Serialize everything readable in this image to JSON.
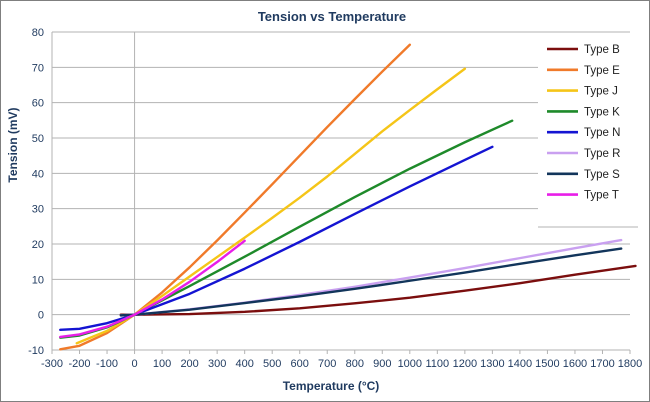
{
  "chart_data": {
    "type": "line",
    "title": "Tension vs Temperature",
    "xlabel": "Temperature (°C)",
    "ylabel": "Tension (mV)",
    "xlim": [
      -300,
      1800
    ],
    "ylim": [
      -10,
      80
    ],
    "xticks": [
      -300,
      -200,
      -100,
      0,
      100,
      200,
      300,
      400,
      500,
      600,
      700,
      800,
      900,
      1000,
      1100,
      1200,
      1300,
      1400,
      1500,
      1600,
      1700,
      1800
    ],
    "yticks": [
      -10,
      0,
      10,
      20,
      30,
      40,
      50,
      60,
      70,
      80
    ],
    "grid": "horizontal",
    "legend": "right",
    "series": [
      {
        "name": "Type B",
        "color": "#7b0e0e",
        "x": [
          -50,
          0,
          200,
          400,
          600,
          800,
          1000,
          1200,
          1400,
          1600,
          1820
        ],
        "y": [
          0.0,
          0.0,
          0.18,
          0.8,
          1.8,
          3.2,
          4.8,
          6.8,
          8.9,
          11.3,
          13.8
        ]
      },
      {
        "name": "Type E",
        "color": "#f07a2a",
        "x": [
          -270,
          -200,
          -100,
          0,
          100,
          200,
          300,
          400,
          500,
          600,
          700,
          800,
          900,
          1000
        ],
        "y": [
          -9.8,
          -8.8,
          -5.2,
          0,
          6.3,
          13.4,
          21.0,
          28.9,
          36.9,
          45.0,
          53.1,
          61.0,
          68.8,
          76.4
        ]
      },
      {
        "name": "Type J",
        "color": "#f5c518",
        "x": [
          -210,
          -100,
          0,
          100,
          200,
          300,
          400,
          500,
          600,
          700,
          800,
          900,
          1000,
          1100,
          1200
        ],
        "y": [
          -8.1,
          -4.6,
          0,
          5.3,
          10.8,
          16.3,
          21.8,
          27.4,
          33.1,
          39.1,
          45.5,
          51.9,
          57.9,
          63.8,
          69.6
        ]
      },
      {
        "name": "Type K",
        "color": "#1e8a2a",
        "x": [
          -270,
          -200,
          -100,
          0,
          200,
          400,
          600,
          800,
          1000,
          1200,
          1372
        ],
        "y": [
          -6.5,
          -5.9,
          -3.6,
          0,
          8.1,
          16.4,
          24.9,
          33.3,
          41.3,
          48.8,
          54.9
        ]
      },
      {
        "name": "Type N",
        "color": "#1414d2",
        "x": [
          -270,
          -200,
          -100,
          0,
          200,
          400,
          600,
          800,
          1000,
          1200,
          1300
        ],
        "y": [
          -4.3,
          -4.0,
          -2.4,
          0,
          5.9,
          13.0,
          20.6,
          28.5,
          36.3,
          43.8,
          47.5
        ]
      },
      {
        "name": "Type R",
        "color": "#c9a0f0",
        "x": [
          -50,
          0,
          200,
          400,
          600,
          800,
          1000,
          1200,
          1400,
          1600,
          1768
        ],
        "y": [
          -0.2,
          0,
          1.5,
          3.4,
          5.6,
          7.9,
          10.5,
          13.2,
          16.0,
          18.8,
          21.1
        ]
      },
      {
        "name": "Type S",
        "color": "#12355b",
        "x": [
          -50,
          0,
          200,
          400,
          600,
          800,
          1000,
          1200,
          1400,
          1600,
          1768
        ],
        "y": [
          -0.2,
          0,
          1.4,
          3.3,
          5.2,
          7.3,
          9.6,
          11.9,
          14.4,
          16.8,
          18.7
        ]
      },
      {
        "name": "Type T",
        "color": "#e81ee8",
        "x": [
          -270,
          -200,
          -100,
          0,
          100,
          200,
          300,
          400
        ],
        "y": [
          -6.3,
          -5.6,
          -3.4,
          0,
          4.3,
          9.3,
          14.9,
          20.9
        ]
      }
    ]
  }
}
